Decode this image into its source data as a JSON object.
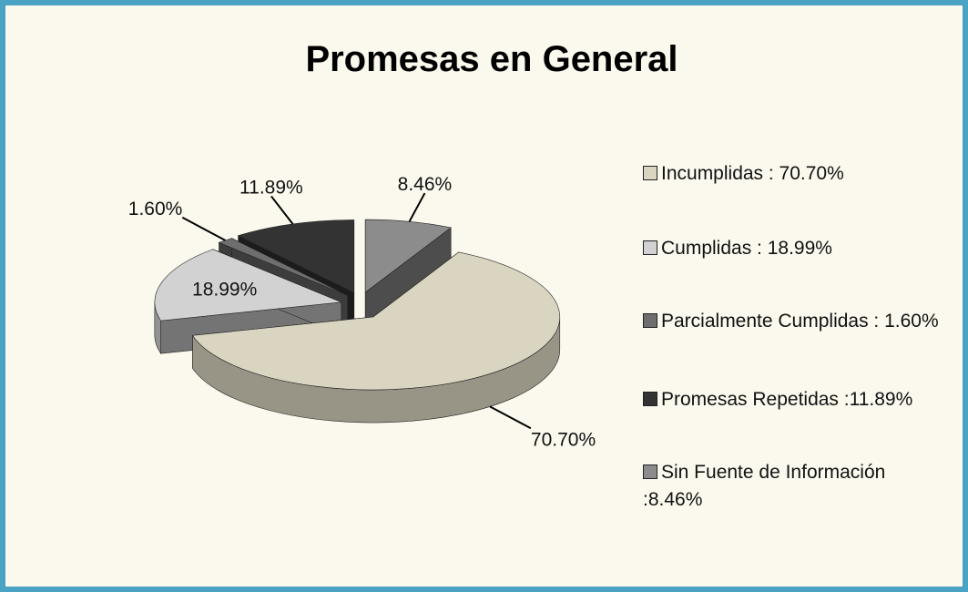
{
  "chart_data": {
    "type": "pie3d",
    "title": "Promesas en General",
    "categories": [
      "Incumplidas :  70.70%",
      "Cumplidas : 18.99%",
      "Parcialmente Cumplidas : 1.60%",
      "Promesas Repetidas :11.89%",
      "Sin Fuente de Información :8.46%"
    ],
    "values": [
      70.7,
      18.99,
      1.6,
      11.89,
      8.46
    ],
    "value_labels": [
      "70.70%",
      "18.99%",
      "1.60%",
      "11.89%",
      "8.46%"
    ],
    "colors": [
      "#d9d5c1",
      "#d2d2d2",
      "#6e6e6e",
      "#333333",
      "#8c8c8c"
    ],
    "legend": "right"
  }
}
